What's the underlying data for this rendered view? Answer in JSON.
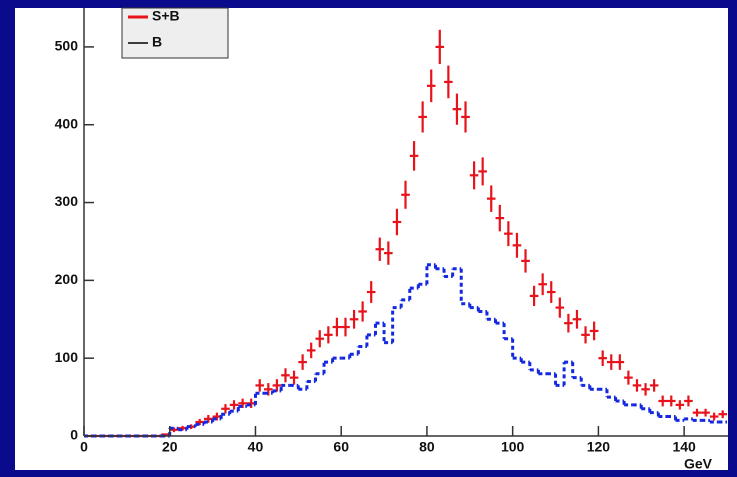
{
  "chart_data": {
    "type": "histogram",
    "x_label": "GeV",
    "bins": [
      0,
      2,
      4,
      6,
      8,
      10,
      12,
      14,
      16,
      18,
      20,
      22,
      24,
      26,
      28,
      30,
      32,
      34,
      36,
      38,
      40,
      42,
      44,
      46,
      48,
      50,
      52,
      54,
      56,
      58,
      60,
      62,
      64,
      66,
      68,
      70,
      72,
      74,
      76,
      78,
      80,
      82,
      84,
      86,
      88,
      90,
      92,
      94,
      96,
      98,
      100,
      102,
      104,
      106,
      108,
      110,
      112,
      114,
      116,
      118,
      120,
      122,
      124,
      126,
      128,
      130,
      132,
      134,
      136,
      138,
      140,
      142,
      144,
      146,
      148,
      150
    ],
    "series": [
      {
        "name": "S+B",
        "color": "#e8121a",
        "style": "points",
        "values": [
          0,
          0,
          0,
          0,
          0,
          0,
          0,
          0,
          0,
          2,
          8,
          10,
          12,
          18,
          22,
          25,
          35,
          40,
          42,
          42,
          65,
          60,
          65,
          78,
          75,
          95,
          110,
          125,
          130,
          140,
          140,
          150,
          160,
          185,
          240,
          235,
          275,
          310,
          360,
          410,
          450,
          500,
          455,
          420,
          410,
          335,
          340,
          305,
          280,
          260,
          245,
          225,
          180,
          195,
          185,
          165,
          145,
          150,
          130,
          135,
          100,
          95,
          95,
          75,
          65,
          60,
          65,
          45,
          45,
          40,
          45,
          30,
          30,
          25,
          28
        ],
        "errors": [
          0,
          0,
          0,
          0,
          0,
          0,
          0,
          0,
          0,
          1,
          3,
          3,
          3,
          4,
          5,
          5,
          6,
          6,
          6,
          6,
          8,
          8,
          8,
          9,
          9,
          10,
          10,
          11,
          11,
          12,
          12,
          12,
          13,
          14,
          15,
          15,
          17,
          18,
          19,
          20,
          21,
          22,
          21,
          20,
          20,
          18,
          18,
          17,
          17,
          16,
          16,
          15,
          13,
          14,
          14,
          13,
          12,
          12,
          11,
          12,
          10,
          10,
          10,
          9,
          8,
          8,
          8,
          7,
          7,
          6,
          7,
          5,
          5,
          5,
          5
        ]
      },
      {
        "name": "B",
        "color": "#1428e0",
        "legend_color": "#000000",
        "style": "dashed-step",
        "values": [
          0,
          0,
          0,
          0,
          0,
          0,
          0,
          0,
          0,
          0,
          10,
          8,
          12,
          15,
          18,
          22,
          28,
          32,
          38,
          40,
          55,
          55,
          58,
          65,
          65,
          60,
          70,
          80,
          95,
          100,
          100,
          105,
          115,
          130,
          145,
          120,
          165,
          175,
          190,
          195,
          220,
          215,
          205,
          215,
          170,
          165,
          160,
          150,
          145,
          125,
          100,
          95,
          85,
          80,
          80,
          65,
          95,
          75,
          65,
          60,
          60,
          50,
          45,
          40,
          40,
          35,
          30,
          25,
          25,
          20,
          22,
          20,
          20,
          18,
          18
        ]
      }
    ],
    "xlim": [
      0,
      150
    ],
    "ylim": [
      0,
      550
    ],
    "xticks": [
      0,
      20,
      40,
      60,
      80,
      100,
      120,
      140
    ],
    "yticks": [
      0,
      100,
      200,
      300,
      400,
      500
    ]
  }
}
